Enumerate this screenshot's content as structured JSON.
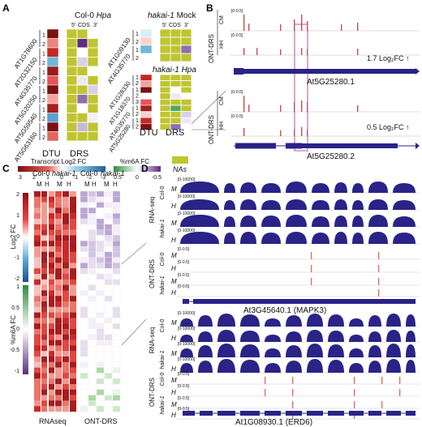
{
  "panels": {
    "a": "A",
    "b": "B",
    "c": "C",
    "d": "D"
  },
  "panelA": {
    "col0_title_prefix": "Col-0 ",
    "col0_title_italic": "Hpa",
    "hakai_mock_prefix": "hakai-1",
    "hakai_mock_suffix": " Mock",
    "hakai_hpa_prefix": "hakai-1 ",
    "hakai_hpa_italic": "Hpa",
    "utr5": "5’",
    "cds": "CDS",
    "utr3": "3’",
    "dtu": "DTU",
    "drs": "DRS",
    "left_genes": [
      "AT1G78600",
      "AT2G32150",
      "AT4G35770",
      "AT5G20250",
      "AT5G59540",
      "AT5G63160"
    ],
    "left_isoforms": [
      "1",
      "2",
      "1",
      "2",
      "1",
      "2",
      "1",
      "2",
      "1",
      "2",
      "1",
      "2"
    ],
    "left_dtu": [
      "#7a1212",
      "#e9847d",
      "#c12a22",
      "#6fb7dc",
      "#9c1a18",
      "#e4545a",
      "#7a1212",
      "#f2a3a0",
      "#a3201c",
      "#5b9fd0",
      "#7a1212",
      "#e4655f"
    ],
    "left_drs": [
      [
        "#bfc531",
        "#bfc531",
        "#ffffff"
      ],
      [
        "#bfc531",
        "#5d2c7d",
        "#bfc531"
      ],
      [
        "#bfc531",
        "#ffffff",
        "#bfc531"
      ],
      [
        "#bfc531",
        "#d9cfe6",
        "#bfc531"
      ],
      [
        "#bfc531",
        "#bfc531",
        "#ffffff"
      ],
      [
        "#bfc531",
        "#efe8f4",
        "#bfc531"
      ],
      [
        "#bfc531",
        "#bfc531",
        "#d9cfe6"
      ],
      [
        "#bfc531",
        "#8d6fb0",
        "#bfc531"
      ],
      [
        "#bfc531",
        "#ffffff",
        "#bfc531"
      ],
      [
        "#bfc531",
        "#bfc531",
        "#f4eff8"
      ],
      [
        "#bfc531",
        "#c6b8da",
        "#bfc531"
      ],
      [
        "#bfc531",
        "#bfc531",
        "#bfc531"
      ]
    ],
    "mock_genes": [
      "AT1G09130",
      "AT4G35770"
    ],
    "mock_isoforms": [
      "1",
      "2",
      "1",
      "2"
    ],
    "mock_dtu": [
      "#d9eef7",
      "#f7d3d0",
      "#6fb7dc",
      "#ffffff"
    ],
    "mock_drs": [
      [
        "#bfc531",
        "#bfc531",
        "#bfc531"
      ],
      [
        "#bfc531",
        "#bfc531",
        "#bfc531"
      ],
      [
        "#bfc531",
        "#bfc531",
        "#8d6fb0"
      ],
      [
        "#bfc531",
        "#bfc531",
        "#bfc531"
      ]
    ],
    "hpa_genes": [
      "AT1G28330",
      "AT1G18370",
      "AT4G35770",
      "AT5G25280"
    ],
    "hpa_isoforms": [
      "1",
      "2",
      "1",
      "2",
      "3",
      "1",
      "2",
      "1",
      "2"
    ],
    "hpa_dtu": [
      "#c12a22",
      "#f2a3a0",
      "#7a1212",
      "#ffffff",
      "#e4545a",
      "#a3201c",
      "#f7d3d0",
      "#c12a22",
      "#7a1212"
    ],
    "hpa_drs": [
      [
        "#bfc531",
        "#bfc531",
        "#bfc531"
      ],
      [
        "#bfc531",
        "#bfc531",
        "#bfc531"
      ],
      [
        "#bfc531",
        "#ffffff",
        "#bfc531"
      ],
      [
        "#bfc531",
        "#efe8f4",
        "#ffffff"
      ],
      [
        "#bfc531",
        "#bfc531",
        "#bfc531"
      ],
      [
        "#bfc531",
        "#4ea862",
        "#bfc531"
      ],
      [
        "#bfc531",
        "#bfc531",
        "#d9cfe6"
      ],
      [
        "#bfc531",
        "#bfc531",
        "#efe8f4"
      ],
      [
        "#bfc531",
        "#8d6fb0",
        "#ffffff"
      ]
    ],
    "legend": {
      "transcript_label": "Transcript Log2 FC",
      "transcript_ticks": [
        "3",
        "2",
        "1",
        "0",
        "-1",
        "-2",
        "-3"
      ],
      "m6a_label": "%m6A FC",
      "m6a_ticks": [
        "0.5",
        "0",
        "-0.5"
      ],
      "nas_label": "NAs",
      "nas_color": "#bfc531"
    }
  },
  "panelB": {
    "range": "[0-0.5]",
    "group_top": "ONT-DRS",
    "group_bottom": "ONT-DRS",
    "track_cm": "CM",
    "track_hh": "HH",
    "fc_top": "1.7 Log₂FC ↑",
    "fc_bottom": "0.5 Log₂FC ↑",
    "gene_top": "At5G25280.1",
    "gene_bottom": "At5G25280.2",
    "signal_color": "#c0504d",
    "gene_color": "#2a2388",
    "highlight_color": "#b4509c"
  },
  "panelC": {
    "col0": "Col-0",
    "hakai": "hakai-1",
    "m": "M",
    "h": "H",
    "log2fc": "Log2 FC",
    "m6afc": "%m6A FC",
    "ticks_top": [
      "2",
      "1",
      "0",
      "-1",
      "-2"
    ],
    "ticks_bottom": [
      "1",
      "0.5",
      "0",
      "-0.5",
      "-1"
    ],
    "rnaseq": "RNAseq",
    "ontdrs": "ONT-DRS"
  },
  "panelD": {
    "rnaseq": "RNA-seq",
    "ontdrs": "ONT-DRS",
    "col0": "Col-0",
    "hakai": "hakai-1",
    "m": "M",
    "h": "H",
    "range_rna": "[0-10000]",
    "range_drs": "[0-0.5]",
    "gene1": "At3G45640.1 (MAPK3)",
    "gene2": "At1G08930.1 (ERD6)",
    "coverage_color": "#2a2388",
    "signal_color": "#e06666"
  }
}
